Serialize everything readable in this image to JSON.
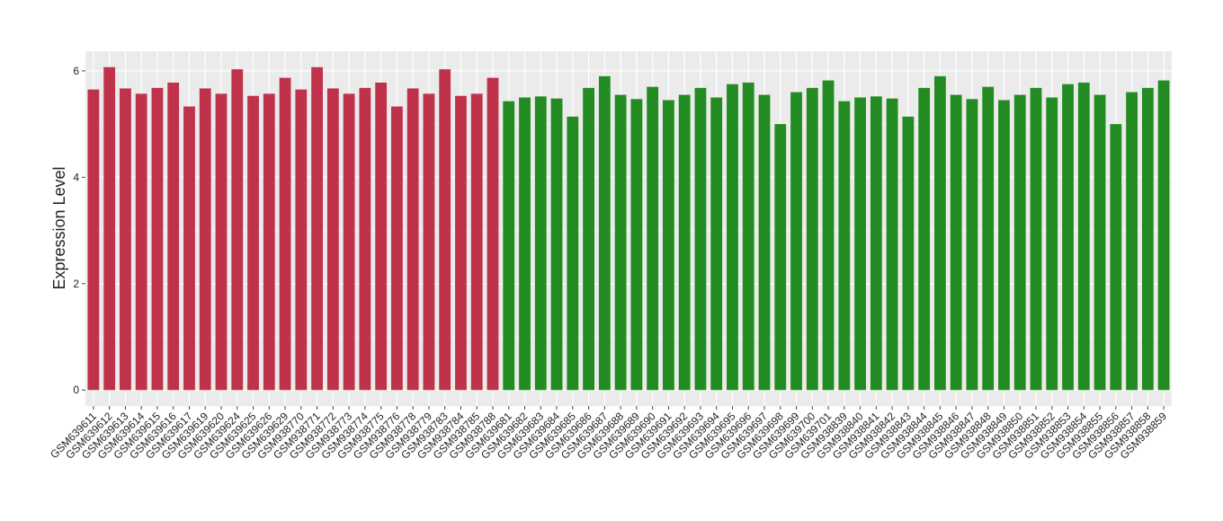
{
  "chart_data": {
    "type": "bar",
    "y_label": "Expression Level",
    "categories": [
      "GSM639611",
      "GSM639612",
      "GSM639613",
      "GSM639614",
      "GSM639615",
      "GSM639616",
      "GSM639617",
      "GSM639619",
      "GSM639620",
      "GSM639624",
      "GSM639625",
      "GSM639626",
      "GSM639629",
      "GSM938770",
      "GSM938771",
      "GSM938772",
      "GSM938773",
      "GSM938774",
      "GSM938775",
      "GSM938776",
      "GSM938778",
      "GSM938779",
      "GSM938783",
      "GSM938784",
      "GSM938785",
      "GSM938788",
      "GSM639681",
      "GSM639682",
      "GSM639683",
      "GSM639684",
      "GSM639685",
      "GSM639686",
      "GSM639687",
      "GSM639688",
      "GSM639689",
      "GSM639690",
      "GSM639691",
      "GSM639692",
      "GSM639693",
      "GSM639694",
      "GSM639695",
      "GSM639696",
      "GSM639697",
      "GSM639698",
      "GSM639699",
      "GSM639700",
      "GSM639701",
      "GSM938839",
      "GSM938840",
      "GSM938841",
      "GSM938842",
      "GSM938843",
      "GSM938844",
      "GSM938845",
      "GSM938846",
      "GSM938847",
      "GSM938848",
      "GSM938849",
      "GSM938850",
      "GSM938851",
      "GSM938852",
      "GSM938853",
      "GSM938854",
      "GSM938855",
      "GSM938856",
      "GSM938857",
      "GSM938858",
      "GSM938859"
    ],
    "values": [
      5.65,
      6.07,
      5.67,
      5.57,
      5.68,
      5.78,
      5.33,
      5.67,
      5.57,
      6.03,
      5.53,
      5.57,
      5.87,
      5.65,
      6.07,
      5.67,
      5.57,
      5.68,
      5.78,
      5.33,
      5.67,
      5.57,
      6.03,
      5.53,
      5.57,
      5.87,
      5.43,
      5.5,
      5.52,
      5.48,
      5.14,
      5.68,
      5.9,
      5.55,
      5.47,
      5.7,
      5.45,
      5.55,
      5.68,
      5.5,
      5.75,
      5.78,
      5.55,
      5.0,
      5.6,
      5.68,
      5.82,
      5.43,
      5.5,
      5.52,
      5.48,
      5.14,
      5.68,
      5.9,
      5.55,
      5.47,
      5.7,
      5.45,
      5.55,
      5.68,
      5.5,
      5.75,
      5.78,
      5.55,
      5.0,
      5.6,
      5.68,
      5.82
    ],
    "colors": [
      "#c0314a",
      "#c0314a",
      "#c0314a",
      "#c0314a",
      "#c0314a",
      "#c0314a",
      "#c0314a",
      "#c0314a",
      "#c0314a",
      "#c0314a",
      "#c0314a",
      "#c0314a",
      "#c0314a",
      "#c0314a",
      "#c0314a",
      "#c0314a",
      "#c0314a",
      "#c0314a",
      "#c0314a",
      "#c0314a",
      "#c0314a",
      "#c0314a",
      "#c0314a",
      "#c0314a",
      "#c0314a",
      "#c0314a",
      "#228b22",
      "#228b22",
      "#228b22",
      "#228b22",
      "#228b22",
      "#228b22",
      "#228b22",
      "#228b22",
      "#228b22",
      "#228b22",
      "#228b22",
      "#228b22",
      "#228b22",
      "#228b22",
      "#228b22",
      "#228b22",
      "#228b22",
      "#228b22",
      "#228b22",
      "#228b22",
      "#228b22",
      "#228b22",
      "#228b22",
      "#228b22",
      "#228b22",
      "#228b22",
      "#228b22",
      "#228b22",
      "#228b22",
      "#228b22",
      "#228b22",
      "#228b22",
      "#228b22",
      "#228b22",
      "#228b22",
      "#228b22",
      "#228b22",
      "#228b22",
      "#228b22",
      "#228b22",
      "#228b22",
      "#228b22"
    ],
    "ylim": [
      -0.3,
      6.37
    ],
    "yticks": [
      0,
      2,
      4,
      6
    ],
    "grid": true
  }
}
